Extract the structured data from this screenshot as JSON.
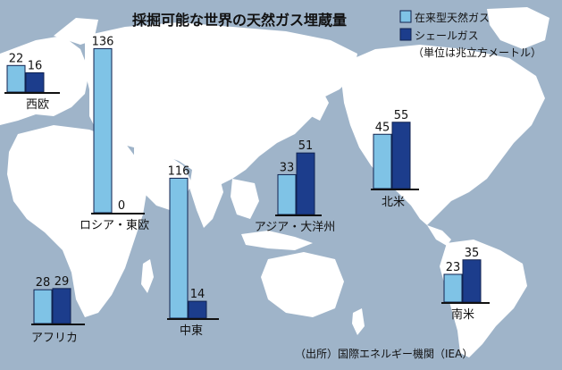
{
  "title": "採掘可能な世界の天然ガス埋蔵量",
  "legend": {
    "conventional": "在来型天然ガス",
    "shale": "シェールガス"
  },
  "unit": "（単位は兆立方メートル）",
  "source": "（出所）国際エネルギー機関（IEA）",
  "colors": {
    "background": "#9fb4c9",
    "conventional": "#7fc3e6",
    "shale": "#1c3d8c",
    "bar_border": "#10224f",
    "map": "#ffffff"
  },
  "chart_data": {
    "type": "bar",
    "title": "採掘可能な世界の天然ガス埋蔵量",
    "unit": "兆立方メートル",
    "series_names": [
      "在来型天然ガス",
      "シェールガス"
    ],
    "regions": [
      {
        "name": "西欧",
        "conventional": 22,
        "shale": 16
      },
      {
        "name": "ロシア・東欧",
        "conventional": 136,
        "shale": 0
      },
      {
        "name": "中東",
        "conventional": 116,
        "shale": 14
      },
      {
        "name": "アジア・大洋州",
        "conventional": 33,
        "shale": 51
      },
      {
        "name": "北米",
        "conventional": 45,
        "shale": 55
      },
      {
        "name": "南米",
        "conventional": 23,
        "shale": 35
      },
      {
        "name": "アフリカ",
        "conventional": 28,
        "shale": 29
      }
    ]
  }
}
